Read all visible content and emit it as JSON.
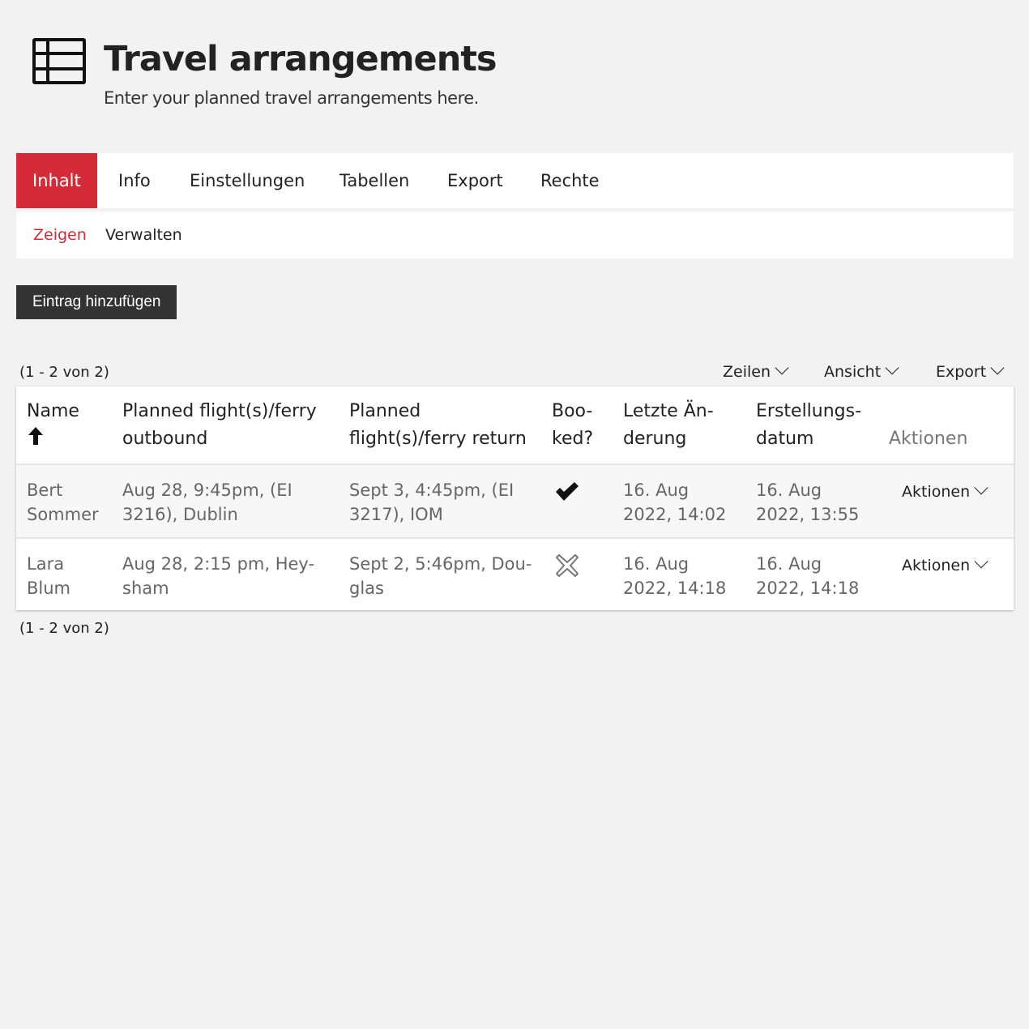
{
  "header": {
    "icon": "table-icon",
    "title": "Travel arrangements",
    "subtitle": "Enter your planned travel arrangements here."
  },
  "tabs": [
    {
      "label": "Inhalt",
      "active": true
    },
    {
      "label": "Info"
    },
    {
      "label": "Einstellungen"
    },
    {
      "label": "Tabellen"
    },
    {
      "label": "Export"
    },
    {
      "label": "Rechte"
    }
  ],
  "subtabs": [
    {
      "label": "Zeigen",
      "active": true
    },
    {
      "label": "Verwalten"
    }
  ],
  "add_button": "Eintrag hinzufügen",
  "pagination_top": "(1 - 2 von 2)",
  "pagination_bottom": "(1 - 2 von 2)",
  "toolbar": {
    "rows": "Zeilen",
    "view": "Ansicht",
    "export": "Export"
  },
  "accent_color": "#d52b38",
  "table": {
    "columns": [
      {
        "line1": "Name",
        "sort": "ascending"
      },
      {
        "line1": "Planned flight(s)/ferry",
        "line2": "outbound"
      },
      {
        "line1": "Planned",
        "line2": "flight(s)/ferry return"
      },
      {
        "line1": "Boo-",
        "line2": "ked?"
      },
      {
        "line1": "Letzte Än-",
        "line2": "derung"
      },
      {
        "line1": "Erstellungs-",
        "line2": "datum"
      },
      {
        "line1": "",
        "line2": "Aktionen"
      }
    ],
    "rows": [
      {
        "name": [
          "Bert",
          "Sommer"
        ],
        "outbound": [
          "Aug 28, 9:45pm, (EI",
          "3216), Dublin"
        ],
        "return": [
          "Sept 3, 4:45pm, (EI",
          "3217), IOM"
        ],
        "booked": true,
        "modified": [
          "16. Aug",
          "2022, 14:02"
        ],
        "created": [
          "16. Aug",
          "2022, 13:55"
        ],
        "actions": "Aktionen"
      },
      {
        "name": [
          "Lara",
          "Blum"
        ],
        "outbound": [
          "Aug 28, 2:15 pm, Hey-",
          "sham"
        ],
        "return": [
          "Sept 2, 5:46pm, Dou-",
          "glas"
        ],
        "booked": false,
        "modified": [
          "16. Aug",
          "2022, 14:18"
        ],
        "created": [
          "16. Aug",
          "2022, 14:18"
        ],
        "actions": "Aktionen"
      }
    ]
  }
}
